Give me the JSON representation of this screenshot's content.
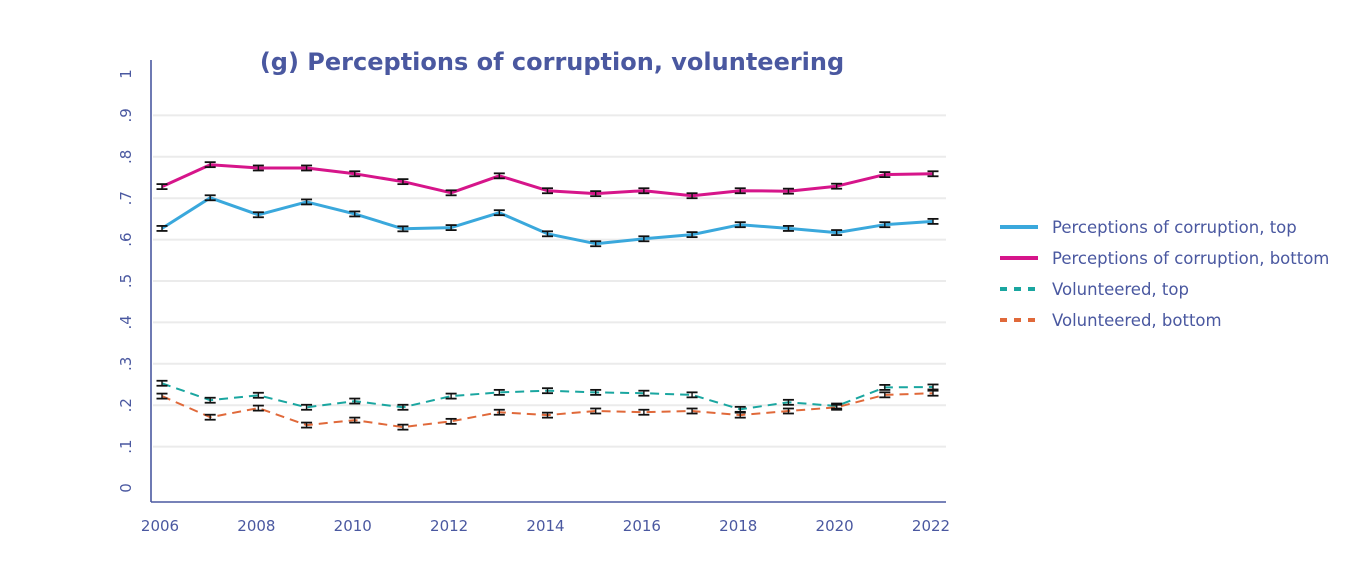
{
  "chart_data": {
    "type": "line",
    "title": "(g) Perceptions of corruption, volunteering",
    "xlabel": "",
    "ylabel": "",
    "x": [
      2006,
      2007,
      2008,
      2009,
      2010,
      2011,
      2012,
      2013,
      2014,
      2015,
      2016,
      2017,
      2018,
      2019,
      2020,
      2021,
      2022
    ],
    "xlim": [
      2006,
      2022
    ],
    "ylim": [
      0,
      1
    ],
    "x_ticks": [
      2006,
      2008,
      2010,
      2012,
      2014,
      2016,
      2018,
      2020,
      2022
    ],
    "x_tick_labels": [
      "2006",
      "2008",
      "2010",
      "2012",
      "2014",
      "2016",
      "2018",
      "2020",
      "2022"
    ],
    "y_ticks": [
      0,
      0.1,
      0.2,
      0.3,
      0.4,
      0.5,
      0.6,
      0.7,
      0.8,
      0.9,
      1
    ],
    "y_tick_labels": [
      "0",
      ".1",
      ".2",
      ".3",
      ".4",
      ".5",
      ".6",
      ".7",
      ".8",
      ".9",
      "1"
    ],
    "grid": "horizontal",
    "error_bars": true,
    "legend_position": "right",
    "series": [
      {
        "name": "Perceptions of corruption, top",
        "style": "solid",
        "color": "#3aa8dc",
        "values": [
          0.627,
          0.701,
          0.66,
          0.691,
          0.662,
          0.626,
          0.629,
          0.665,
          0.614,
          0.59,
          0.602,
          0.612,
          0.636,
          0.627,
          0.617,
          0.636,
          0.644
        ]
      },
      {
        "name": "Perceptions of corruption, bottom",
        "style": "solid",
        "color": "#d6158a",
        "values": [
          0.728,
          0.781,
          0.773,
          0.773,
          0.759,
          0.74,
          0.713,
          0.754,
          0.718,
          0.711,
          0.718,
          0.706,
          0.718,
          0.717,
          0.729,
          0.757,
          0.759
        ]
      },
      {
        "name": "Volunteered, top",
        "style": "dashed",
        "color": "#1aa6a0",
        "values": [
          0.253,
          0.212,
          0.224,
          0.195,
          0.21,
          0.195,
          0.222,
          0.231,
          0.235,
          0.231,
          0.229,
          0.225,
          0.19,
          0.207,
          0.198,
          0.243,
          0.244
        ]
      },
      {
        "name": "Volunteered, bottom",
        "style": "dashed",
        "color": "#e0693a",
        "values": [
          0.222,
          0.171,
          0.193,
          0.152,
          0.164,
          0.147,
          0.161,
          0.183,
          0.176,
          0.186,
          0.183,
          0.186,
          0.176,
          0.186,
          0.195,
          0.225,
          0.229
        ]
      }
    ]
  }
}
